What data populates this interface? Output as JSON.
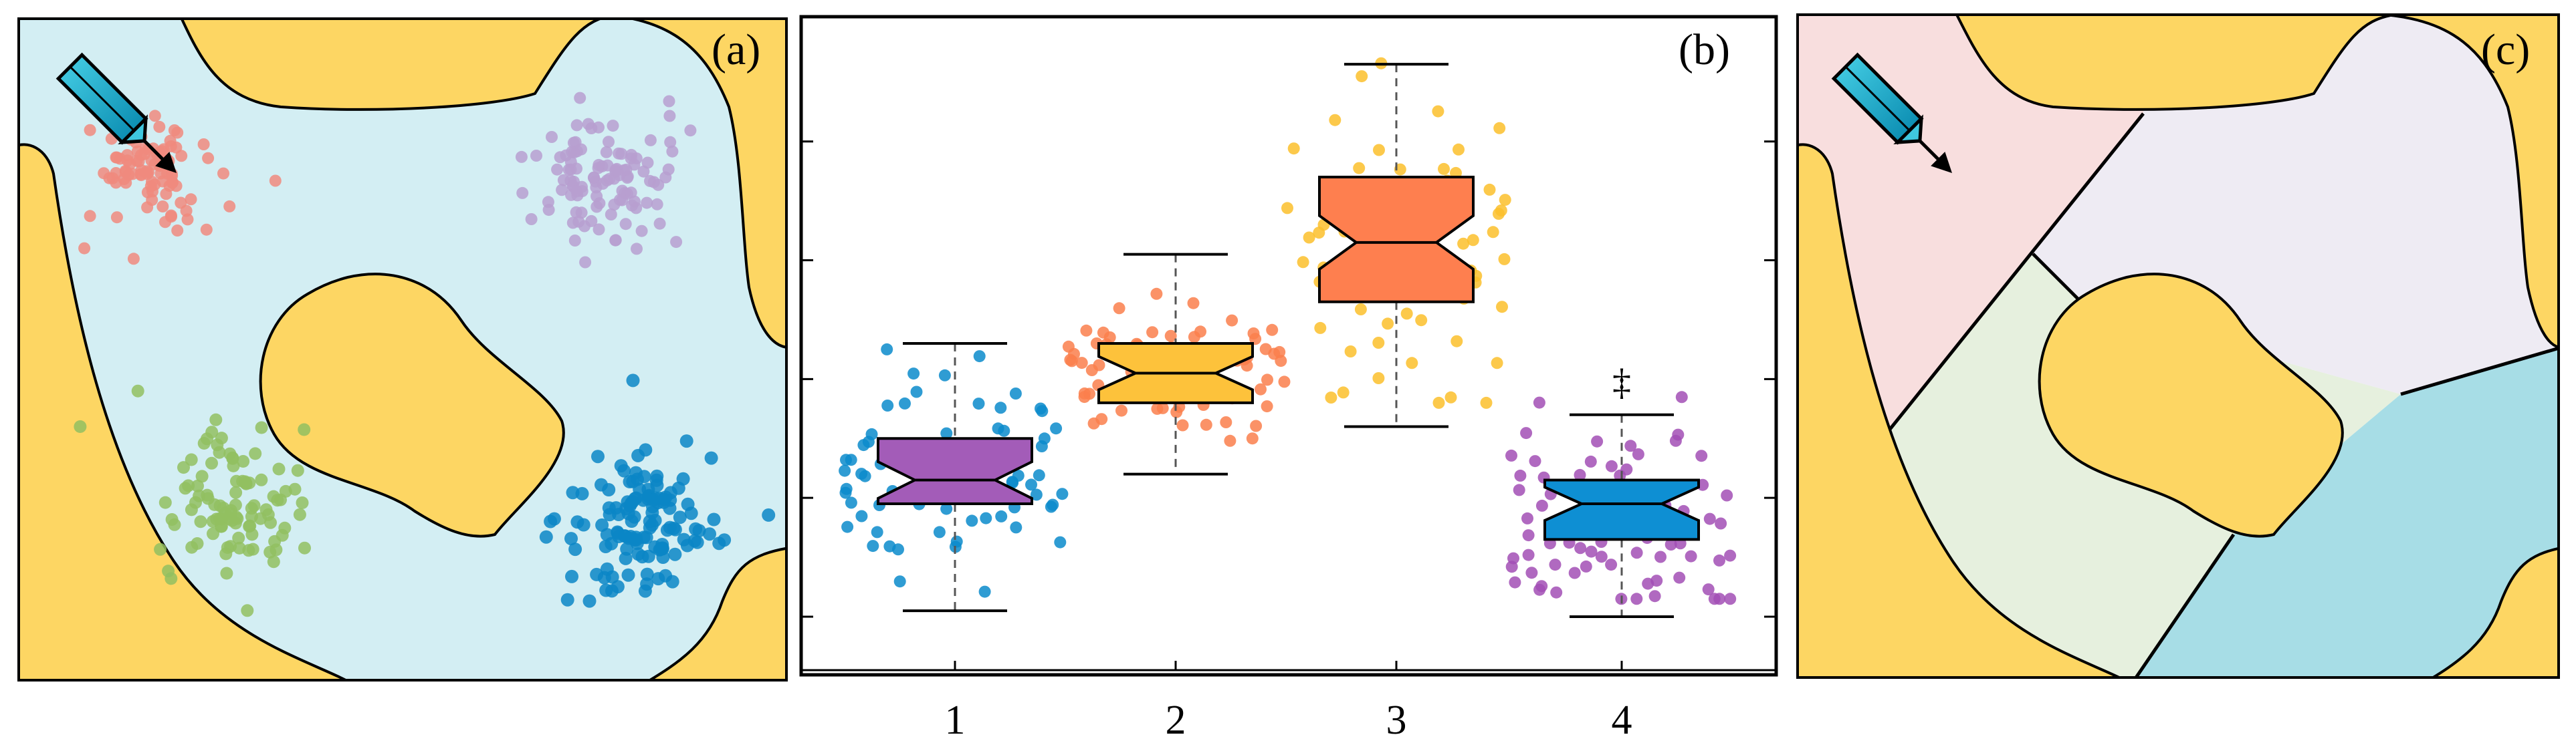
{
  "panels": {
    "a": {
      "label": "(a)",
      "background_color": "#d3eef3",
      "obstacle_color": "#fdd663"
    },
    "b": {
      "label": "(b)"
    },
    "c": {
      "label": "(c)",
      "region_colors": [
        "#f8dede",
        "#eeebf3",
        "#e6f0de",
        "#a7dde6"
      ]
    }
  },
  "clusters": [
    {
      "name": "salmon",
      "color": "#f08a7e"
    },
    {
      "name": "lavender",
      "color": "#b79fd0"
    },
    {
      "name": "green",
      "color": "#92c060"
    },
    {
      "name": "blue",
      "color": "#0b86c6"
    }
  ],
  "chart_data": {
    "type": "box",
    "title": "",
    "xlabel": "",
    "ylabel": "",
    "categories": [
      "1",
      "2",
      "3",
      "4"
    ],
    "ylim": [
      0,
      11
    ],
    "grid": false,
    "boxes": [
      {
        "category": "1",
        "whisker_low": 1.0,
        "q1": 2.8,
        "median": 3.2,
        "q3": 3.9,
        "whisker_high": 5.5,
        "box_color": "#a35cb8",
        "points_color": "#0b8bcb",
        "points_range": [
          1.0,
          5.4
        ]
      },
      {
        "category": "2",
        "whisker_low": 3.3,
        "q1": 4.5,
        "median": 5.0,
        "q3": 5.5,
        "whisker_high": 7.0,
        "box_color": "#fdc23b",
        "points_color": "#fa7f4c",
        "points_range": [
          3.6,
          6.4
        ]
      },
      {
        "category": "3",
        "whisker_low": 4.1,
        "q1": 6.2,
        "median": 7.2,
        "q3": 8.3,
        "whisker_high": 10.2,
        "box_color": "#fe7f4f",
        "points_color": "#fcc02b",
        "points_range": [
          4.5,
          10.4
        ]
      },
      {
        "category": "4",
        "whisker_low": 0.9,
        "q1": 2.2,
        "median": 2.8,
        "q3": 3.2,
        "whisker_high": 4.3,
        "box_color": "#0e8fd3",
        "points_color": "#a24fb5",
        "points_range": [
          1.2,
          5.2
        ],
        "annotation": "‡"
      }
    ]
  }
}
